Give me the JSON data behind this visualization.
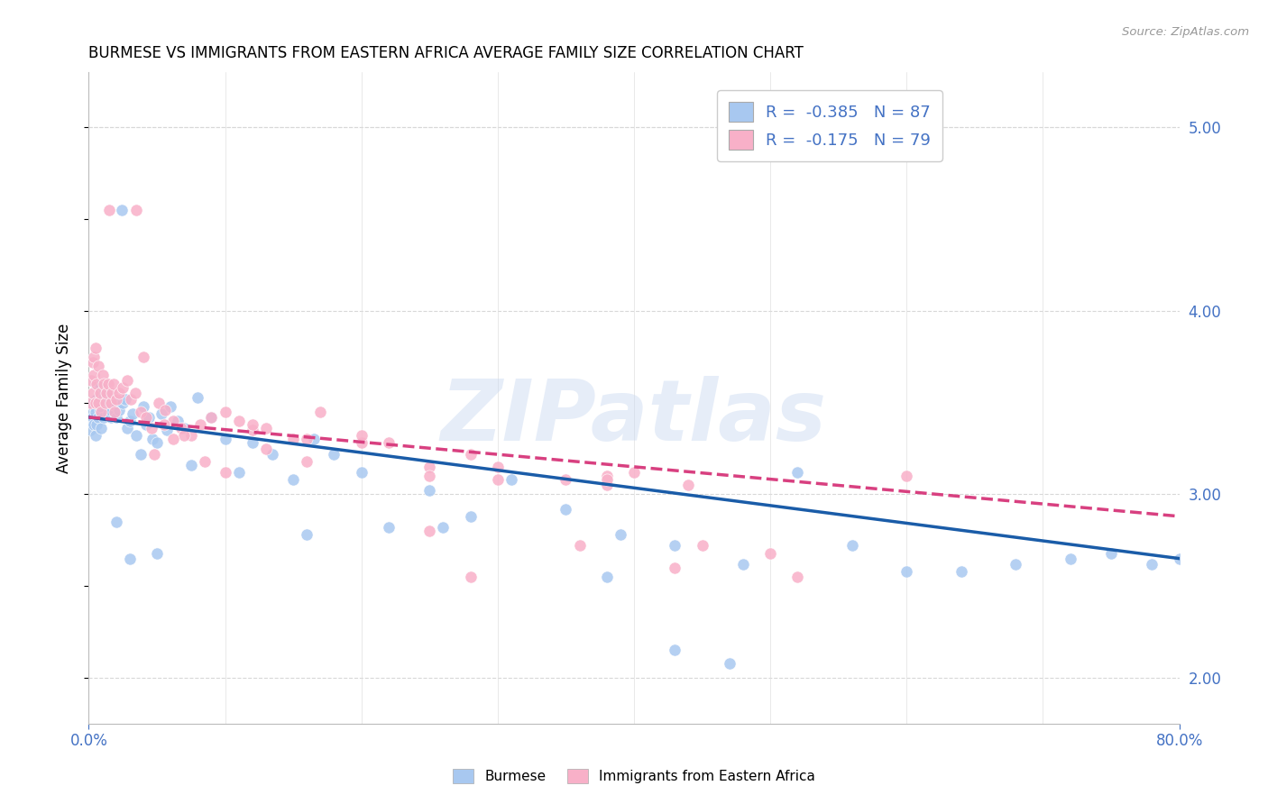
{
  "title": "BURMESE VS IMMIGRANTS FROM EASTERN AFRICA AVERAGE FAMILY SIZE CORRELATION CHART",
  "source": "Source: ZipAtlas.com",
  "ylabel": "Average Family Size",
  "watermark": "ZIPatlas",
  "right_yticks": [
    2.0,
    3.0,
    4.0,
    5.0
  ],
  "xlim": [
    0.0,
    0.8
  ],
  "ylim": [
    1.75,
    5.3
  ],
  "bg_color": "#ffffff",
  "grid_color": "#d8d8d8",
  "title_fontsize": 12,
  "blue_color": "#4472c4",
  "series": [
    {
      "label": "Burmese",
      "R": -0.385,
      "N": 87,
      "scatter_color": "#a8c8f0",
      "line_color": "#1a5ca8",
      "line_style": "solid",
      "trend_x0": 0.0,
      "trend_y0": 3.42,
      "trend_x1": 0.8,
      "trend_y1": 2.65,
      "x": [
        0.001,
        0.002,
        0.002,
        0.003,
        0.003,
        0.004,
        0.004,
        0.005,
        0.005,
        0.005,
        0.006,
        0.006,
        0.007,
        0.007,
        0.008,
        0.008,
        0.009,
        0.009,
        0.01,
        0.01,
        0.011,
        0.012,
        0.013,
        0.013,
        0.014,
        0.015,
        0.016,
        0.016,
        0.017,
        0.018,
        0.019,
        0.02,
        0.022,
        0.024,
        0.025,
        0.027,
        0.028,
        0.03,
        0.032,
        0.035,
        0.038,
        0.04,
        0.042,
        0.044,
        0.047,
        0.05,
        0.053,
        0.057,
        0.06,
        0.065,
        0.07,
        0.075,
        0.08,
        0.09,
        0.1,
        0.11,
        0.12,
        0.135,
        0.15,
        0.165,
        0.18,
        0.2,
        0.22,
        0.25,
        0.28,
        0.31,
        0.35,
        0.39,
        0.43,
        0.48,
        0.52,
        0.56,
        0.6,
        0.64,
        0.68,
        0.72,
        0.75,
        0.78,
        0.8,
        0.26,
        0.05,
        0.03,
        0.02,
        0.16,
        0.38,
        0.43,
        0.47
      ],
      "y": [
        3.35,
        3.4,
        3.45,
        3.5,
        3.42,
        3.48,
        3.38,
        3.6,
        3.45,
        3.32,
        3.52,
        3.38,
        3.5,
        3.42,
        3.58,
        3.46,
        3.48,
        3.36,
        3.52,
        3.55,
        3.42,
        3.55,
        3.5,
        3.55,
        3.44,
        3.5,
        3.42,
        3.46,
        3.53,
        3.49,
        3.51,
        3.42,
        3.46,
        4.55,
        3.5,
        3.52,
        3.36,
        3.4,
        3.44,
        3.32,
        3.22,
        3.48,
        3.38,
        3.42,
        3.3,
        3.28,
        3.44,
        3.35,
        3.48,
        3.4,
        3.36,
        3.16,
        3.53,
        3.42,
        3.3,
        3.12,
        3.28,
        3.22,
        3.08,
        3.3,
        3.22,
        3.12,
        2.82,
        3.02,
        2.88,
        3.08,
        2.92,
        2.78,
        2.72,
        2.62,
        3.12,
        2.72,
        2.58,
        2.58,
        2.62,
        2.65,
        2.68,
        2.62,
        2.65,
        2.82,
        2.68,
        2.65,
        2.85,
        2.78,
        2.55,
        2.15,
        2.08
      ]
    },
    {
      "label": "Immigrants from Eastern Africa",
      "R": -0.175,
      "N": 79,
      "scatter_color": "#f8b0c8",
      "line_color": "#d84080",
      "line_style": "dashed",
      "trend_x0": 0.0,
      "trend_y0": 3.42,
      "trend_x1": 0.8,
      "trend_y1": 2.88,
      "x": [
        0.001,
        0.002,
        0.003,
        0.003,
        0.004,
        0.004,
        0.005,
        0.005,
        0.006,
        0.007,
        0.007,
        0.008,
        0.009,
        0.01,
        0.011,
        0.012,
        0.013,
        0.014,
        0.015,
        0.016,
        0.017,
        0.018,
        0.019,
        0.02,
        0.022,
        0.025,
        0.028,
        0.031,
        0.034,
        0.038,
        0.042,
        0.046,
        0.051,
        0.056,
        0.062,
        0.068,
        0.075,
        0.082,
        0.09,
        0.1,
        0.11,
        0.13,
        0.15,
        0.04,
        0.055,
        0.07,
        0.085,
        0.035,
        0.048,
        0.062,
        0.1,
        0.12,
        0.16,
        0.2,
        0.25,
        0.16,
        0.2,
        0.28,
        0.35,
        0.12,
        0.3,
        0.38,
        0.25,
        0.36,
        0.3,
        0.4,
        0.22,
        0.45,
        0.13,
        0.44,
        0.5,
        0.38,
        0.28,
        0.43,
        0.17,
        0.38,
        0.25,
        0.52,
        0.6
      ],
      "y": [
        3.5,
        3.62,
        3.72,
        3.55,
        3.65,
        3.75,
        3.8,
        3.5,
        3.6,
        3.5,
        3.7,
        3.55,
        3.45,
        3.65,
        3.6,
        3.5,
        3.55,
        3.6,
        4.55,
        3.5,
        3.55,
        3.6,
        3.45,
        3.52,
        3.55,
        3.58,
        3.62,
        3.52,
        3.55,
        3.45,
        3.42,
        3.36,
        3.5,
        3.46,
        3.4,
        3.36,
        3.32,
        3.38,
        3.42,
        3.45,
        3.4,
        3.36,
        3.3,
        3.75,
        3.38,
        3.32,
        3.18,
        4.55,
        3.22,
        3.3,
        3.12,
        3.35,
        3.3,
        3.28,
        3.15,
        3.18,
        3.32,
        3.22,
        3.08,
        3.38,
        3.15,
        3.05,
        3.1,
        2.72,
        3.08,
        3.12,
        3.28,
        2.72,
        3.25,
        3.05,
        2.68,
        3.1,
        2.55,
        2.6,
        3.45,
        3.08,
        2.8,
        2.55,
        3.1
      ]
    }
  ]
}
